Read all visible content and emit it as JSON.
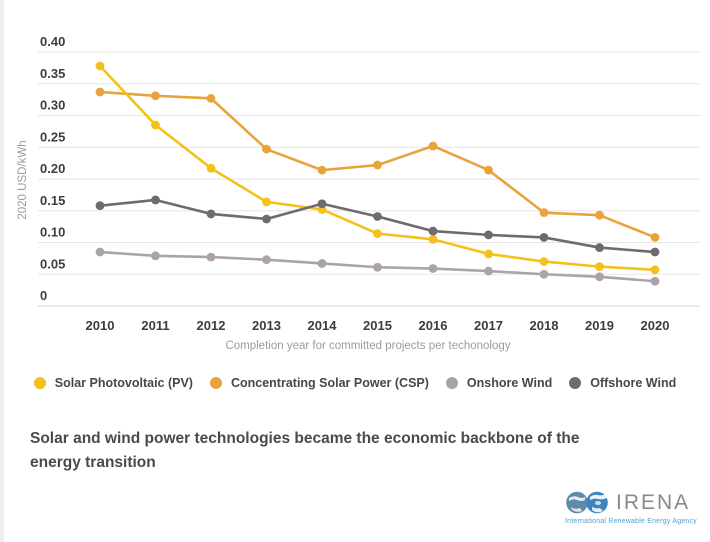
{
  "chart_data": {
    "type": "line",
    "title": "",
    "x": [
      2010,
      2011,
      2012,
      2013,
      2014,
      2015,
      2016,
      2017,
      2018,
      2019,
      2020
    ],
    "xlabel": "Completion year for committed projects per techonology",
    "ylabel": "2020 USD/kWh",
    "ylim": [
      0,
      0.4
    ],
    "yticks": [
      0,
      0.05,
      0.1,
      0.15,
      0.2,
      0.25,
      0.3,
      0.35,
      0.4
    ],
    "ytick_labels": [
      "0",
      "0.05",
      "0.10",
      "0.15",
      "0.20",
      "0.25",
      "0.30",
      "0.35",
      "0.40"
    ],
    "grid": true,
    "legend_position": "bottom",
    "series": [
      {
        "name": "Solar Photovoltaic (PV)",
        "color": "#F2C11B",
        "values": [
          0.378,
          0.285,
          0.217,
          0.164,
          0.152,
          0.114,
          0.105,
          0.082,
          0.07,
          0.062,
          0.057
        ]
      },
      {
        "name": "Concentrating Solar Power (CSP)",
        "color": "#E8A33D",
        "values": [
          0.337,
          0.331,
          0.327,
          0.247,
          0.214,
          0.222,
          0.252,
          0.214,
          0.147,
          0.143,
          0.108
        ]
      },
      {
        "name": "Onshore Wind",
        "color": "#ACA3AA",
        "values": [
          0.085,
          0.079,
          0.077,
          0.073,
          0.067,
          0.061,
          0.059,
          0.055,
          0.05,
          0.046,
          0.039
        ]
      },
      {
        "name": "Offshore Wind",
        "color": "#6F6A6E",
        "values": [
          0.158,
          0.167,
          0.145,
          0.137,
          0.161,
          0.141,
          0.118,
          0.112,
          0.108,
          0.092,
          0.085
        ]
      }
    ]
  },
  "headline": {
    "text": "Solar and wind power technologies became the economic backbone of the energy transition"
  },
  "logo": {
    "name": "IRENA",
    "tagline": "International Renewable Energy Agency"
  }
}
